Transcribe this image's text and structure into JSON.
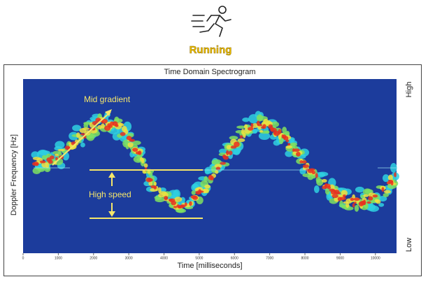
{
  "icon_label": "Running",
  "chart_data": {
    "type": "spectrogram",
    "title": "Time Domain Spectrogram",
    "x_label": "Time [milliseconds]",
    "y_label": "Doppler Frequency [Hz]",
    "xlim": [
      0,
      10600
    ],
    "xticks": [
      0,
      1000,
      2000,
      3000,
      4000,
      5000,
      6000,
      7000,
      8000,
      9000,
      10000
    ],
    "y_high_label": "High",
    "y_low_label": "Low",
    "annotations": [
      "Mid gradient",
      "High speed"
    ]
  }
}
